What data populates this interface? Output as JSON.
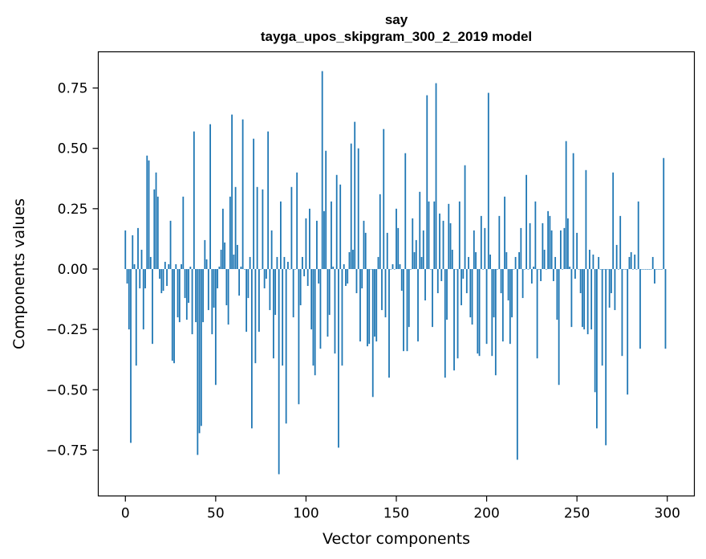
{
  "chart_data": {
    "type": "bar",
    "title": "say",
    "subtitle": "tayga_upos_skipgram_300_2_2019 model",
    "xlabel": "Vector components",
    "ylabel": "Components values",
    "xlim": [
      -15,
      315
    ],
    "ylim": [
      -0.94,
      0.9
    ],
    "xticks": [
      0,
      50,
      100,
      150,
      200,
      250,
      300
    ],
    "xtick_labels": [
      "0",
      "50",
      "100",
      "150",
      "200",
      "250",
      "300"
    ],
    "yticks": [
      -0.75,
      -0.5,
      -0.25,
      0.0,
      0.25,
      0.5,
      0.75
    ],
    "ytick_labels": [
      "−0.75",
      "−0.50",
      "−0.25",
      "0.00",
      "0.25",
      "0.50",
      "0.75"
    ],
    "grid": false,
    "bar_color": "#1f77b4",
    "x": "0..299",
    "values": [
      0.16,
      -0.06,
      -0.25,
      -0.72,
      0.14,
      0.02,
      -0.4,
      0.17,
      -0.08,
      0.08,
      -0.25,
      -0.08,
      0.47,
      0.45,
      0.05,
      -0.31,
      0.33,
      0.4,
      0.3,
      -0.04,
      -0.1,
      -0.09,
      0.03,
      -0.07,
      0.02,
      0.2,
      -0.38,
      -0.39,
      0.02,
      -0.2,
      -0.22,
      0.02,
      0.3,
      -0.12,
      -0.21,
      -0.14,
      0.01,
      -0.27,
      0.57,
      -0.22,
      -0.77,
      -0.68,
      -0.65,
      -0.22,
      0.12,
      0.04,
      -0.17,
      0.6,
      -0.27,
      -0.16,
      -0.48,
      -0.08,
      0.01,
      0.08,
      0.25,
      0.11,
      -0.15,
      -0.23,
      0.3,
      0.64,
      0.06,
      0.34,
      0.1,
      -0.11,
      0.01,
      0.62,
      0.0,
      -0.26,
      -0.12,
      0.05,
      -0.66,
      0.54,
      -0.39,
      0.34,
      -0.26,
      0.0,
      0.33,
      -0.08,
      -0.04,
      0.57,
      -0.17,
      0.16,
      -0.37,
      -0.19,
      0.05,
      -0.85,
      0.28,
      -0.4,
      0.05,
      -0.64,
      0.03,
      0.0,
      0.34,
      -0.2,
      0.0,
      0.4,
      -0.56,
      -0.15,
      0.05,
      -0.03,
      0.21,
      -0.07,
      0.25,
      -0.25,
      -0.4,
      -0.44,
      0.2,
      -0.06,
      -0.33,
      0.82,
      0.24,
      0.49,
      -0.28,
      -0.19,
      0.28,
      0.01,
      -0.35,
      0.39,
      -0.74,
      0.35,
      -0.4,
      0.02,
      -0.07,
      -0.06,
      0.07,
      0.52,
      0.08,
      0.61,
      -0.1,
      0.5,
      -0.3,
      -0.08,
      0.2,
      0.15,
      -0.32,
      -0.31,
      0.0,
      -0.53,
      -0.28,
      -0.3,
      0.05,
      0.31,
      -0.17,
      0.58,
      -0.2,
      0.15,
      -0.45,
      0.0,
      0.02,
      0.0,
      0.25,
      0.17,
      0.02,
      -0.09,
      -0.34,
      0.48,
      -0.34,
      -0.24,
      0.0,
      0.21,
      0.07,
      0.12,
      -0.3,
      0.32,
      0.05,
      0.16,
      -0.13,
      0.72,
      0.28,
      0.0,
      -0.24,
      0.28,
      0.77,
      -0.1,
      0.23,
      -0.05,
      0.2,
      -0.45,
      -0.21,
      0.27,
      0.19,
      0.08,
      -0.42,
      0.0,
      -0.37,
      0.28,
      -0.15,
      -0.04,
      0.43,
      -0.1,
      0.05,
      -0.2,
      -0.23,
      0.16,
      0.07,
      -0.35,
      -0.36,
      0.22,
      0.0,
      0.17,
      -0.31,
      0.73,
      0.06,
      -0.36,
      -0.2,
      -0.44,
      0.0,
      0.22,
      -0.1,
      -0.3,
      0.3,
      0.07,
      -0.13,
      -0.31,
      -0.2,
      0.0,
      0.05,
      -0.79,
      0.07,
      0.17,
      -0.12,
      0.0,
      0.39,
      0.0,
      0.19,
      -0.06,
      0.01,
      0.28,
      -0.37,
      0.0,
      -0.05,
      0.19,
      0.08,
      0.0,
      0.24,
      0.22,
      0.16,
      -0.05,
      0.05,
      -0.21,
      -0.48,
      0.16,
      0.0,
      0.17,
      0.53,
      0.21,
      0.01,
      -0.24,
      0.48,
      -0.04,
      0.15,
      0.0,
      -0.1,
      -0.24,
      -0.25,
      0.41,
      -0.27,
      0.08,
      -0.25,
      0.06,
      -0.51,
      -0.66,
      0.05,
      0.0,
      -0.4,
      0.0,
      -0.73,
      0.0,
      -0.16,
      -0.1,
      0.4,
      -0.17,
      0.1,
      0.0,
      0.22,
      -0.36,
      0.0,
      0.0,
      -0.52,
      0.05,
      0.07,
      0.0,
      0.06,
      0.0,
      0.28,
      -0.33,
      0.0,
      0.0,
      0.0,
      0.0,
      0.0,
      0.0,
      0.05,
      -0.06,
      0.0,
      0.0,
      0.0,
      0.0,
      0.46,
      -0.33
    ]
  }
}
